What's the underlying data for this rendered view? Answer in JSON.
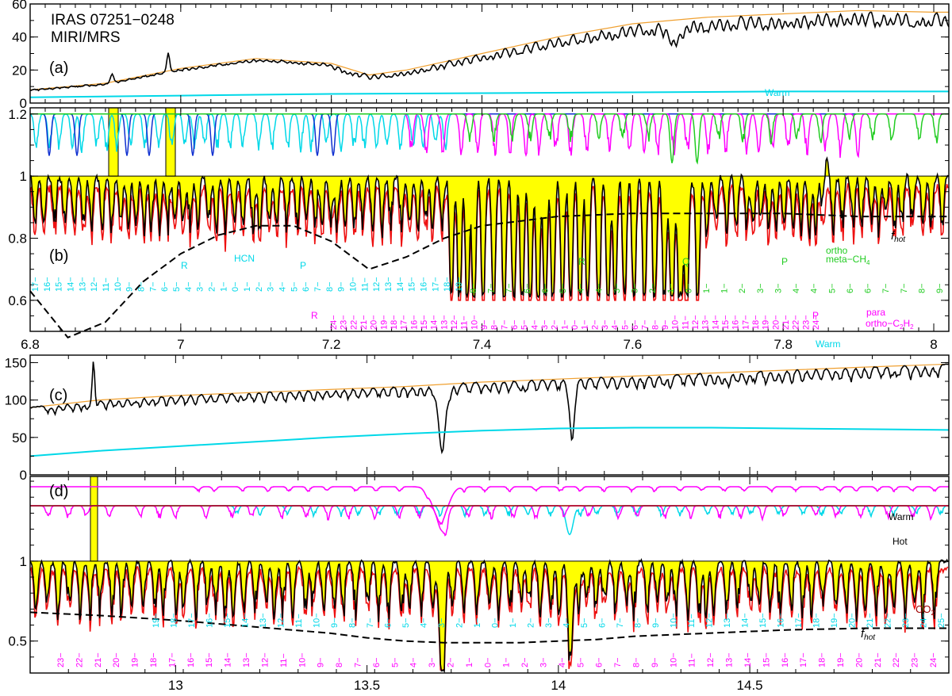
{
  "header": {
    "line1": "IRAS 07251−0248",
    "line2": "MIRI/MRS"
  },
  "colors": {
    "observed": "#000000",
    "continuum": "#f0a030",
    "warm": "#00d8e8",
    "model": "#ee1111",
    "fill": "#ffff00",
    "hcn": "#00d8e8",
    "hcn_hot": "#1030d0",
    "c2h2": "#ff00ff",
    "ch4": "#22cc22",
    "co2": "#a00000",
    "fhot": "#000000"
  },
  "chart_data": [
    {
      "panel": "a",
      "type": "line",
      "x_range": [
        6.8,
        8.02
      ],
      "ylim": [
        0,
        60
      ],
      "yticks": [
        0,
        20,
        40,
        60
      ],
      "series": [
        {
          "name": "",
          "role": "observed",
          "x": [
            6.8,
            6.85,
            6.9,
            6.95,
            7.0,
            7.05,
            7.1,
            7.15,
            7.2,
            7.25,
            7.3,
            7.35,
            7.4,
            7.45,
            7.5,
            7.55,
            7.6,
            7.65,
            7.7,
            7.75,
            7.8,
            7.85,
            7.9,
            7.95,
            8.0,
            8.02
          ],
          "y": [
            10,
            8,
            14,
            20,
            22,
            24,
            27,
            26,
            22,
            17,
            18,
            22,
            26,
            30,
            33,
            38,
            42,
            38,
            43,
            48,
            51,
            54,
            55,
            53,
            54,
            54
          ]
        },
        {
          "name": "",
          "role": "continuum",
          "x": [
            6.8,
            6.9,
            7.0,
            7.1,
            7.2,
            7.25,
            7.3,
            7.4,
            7.5,
            7.6,
            7.7,
            7.8,
            7.9,
            8.0,
            8.02
          ],
          "y": [
            8,
            12,
            21,
            27,
            24,
            17,
            20,
            30,
            40,
            48,
            52,
            54,
            56,
            55,
            55
          ]
        },
        {
          "name": "Warm",
          "role": "warm",
          "x": [
            6.8,
            7.0,
            7.2,
            7.4,
            7.6,
            7.8,
            8.02
          ],
          "y": [
            3.5,
            4.5,
            5.5,
            6,
            6.5,
            7,
            7
          ]
        }
      ],
      "annotations": [
        "(a)",
        "Warm"
      ]
    },
    {
      "panel": "b",
      "type": "line",
      "xlim": [
        6.8,
        8.02
      ],
      "ylim": [
        0.5,
        1.22
      ],
      "xticks": [
        6.8,
        7,
        7.2,
        7.4,
        7.6,
        7.8,
        8
      ],
      "yticks": [
        0.6,
        0.8,
        1,
        1.2
      ],
      "series": [
        {
          "name": "f_hot",
          "role": "fhot",
          "x": [
            6.8,
            6.85,
            6.9,
            6.95,
            7.0,
            7.05,
            7.1,
            7.15,
            7.2,
            7.25,
            7.3,
            7.35,
            7.4,
            7.5,
            7.6,
            7.7,
            7.8,
            7.9,
            8.0,
            8.02
          ],
          "y": [
            0.63,
            0.48,
            0.53,
            0.66,
            0.75,
            0.81,
            0.84,
            0.84,
            0.79,
            0.7,
            0.74,
            0.8,
            0.84,
            0.87,
            0.88,
            0.88,
            0.88,
            0.87,
            0.87,
            0.87
          ]
        }
      ],
      "annotations": {
        "panel_label": "(b)",
        "fhot_label": "f",
        "fhot_sub": "hot",
        "hcn_label": "HCN",
        "hcn_R": "R",
        "hcn_P": "P",
        "hcn_labels": [
          "17",
          "16",
          "15",
          "14",
          "13",
          "12",
          "11",
          "10",
          "9",
          "8",
          "7",
          "6",
          "5",
          "4",
          "3",
          "2",
          "1",
          "0",
          "1",
          "2",
          "3",
          "4",
          "5",
          "6",
          "7",
          "8",
          "9",
          "10",
          "11",
          "12",
          "13",
          "14",
          "15",
          "16",
          "17",
          "18",
          "19"
        ],
        "c2h2_R": "R",
        "c2h2_P": "P",
        "c2h2_labels": [
          "24",
          "23",
          "22",
          "21",
          "20",
          "19",
          "18",
          "17",
          "16",
          "15",
          "14",
          "13",
          "12",
          "11",
          "10",
          "9",
          "8",
          "7",
          "6",
          "5",
          "4",
          "3",
          "2",
          "1",
          "0",
          "1",
          "2",
          "3",
          "4",
          "5",
          "6",
          "7",
          "8",
          "9",
          "10",
          "11",
          "12",
          "13",
          "14",
          "15",
          "16",
          "17",
          "18",
          "19",
          "20",
          "21",
          "22",
          "23",
          "24"
        ],
        "c2h2_para": "para",
        "c2h2_ortho": "ortho−C",
        "c2h2_h": "H",
        "c2h2_sub": "2",
        "ch4_labels": [
          "8",
          "7",
          "7",
          "6",
          "6",
          "5",
          "4",
          "4",
          "3",
          "3",
          "2",
          "1",
          "0",
          "1",
          "1",
          "2",
          "3",
          "3",
          "4",
          "4",
          "5",
          "6",
          "6",
          "7",
          "7",
          "8",
          "9"
        ],
        "ch4_R": "R",
        "ch4_Q": "Q",
        "ch4_P": "P",
        "ch4_ortho": "ortho",
        "ch4_meta": "meta−CH",
        "ch4_sub": "4"
      }
    },
    {
      "panel": "c",
      "type": "line",
      "x_range": [
        12.62,
        15.02
      ],
      "ylim": [
        0,
        160
      ],
      "yticks": [
        0,
        50,
        100,
        150
      ],
      "series": [
        {
          "name": "",
          "role": "observed",
          "x": [
            12.62,
            12.7,
            12.8,
            12.9,
            13.0,
            13.1,
            13.2,
            13.3,
            13.4,
            13.5,
            13.6,
            13.65,
            13.7,
            13.75,
            13.8,
            13.9,
            14.0,
            14.03,
            14.1,
            14.2,
            14.3,
            14.4,
            14.5,
            14.6,
            14.7,
            14.8,
            14.9,
            15.0,
            15.02
          ],
          "y": [
            88,
            92,
            98,
            102,
            104,
            106,
            108,
            112,
            114,
            116,
            112,
            90,
            25,
            105,
            118,
            122,
            126,
            45,
            128,
            132,
            134,
            136,
            138,
            140,
            142,
            144,
            145,
            146,
            146
          ]
        },
        {
          "name": "",
          "role": "continuum",
          "x": [
            12.62,
            12.8,
            13.0,
            13.2,
            13.4,
            13.6,
            13.8,
            14.0,
            14.2,
            14.4,
            14.6,
            14.8,
            15.02
          ],
          "y": [
            90,
            100,
            106,
            110,
            114,
            118,
            124,
            128,
            132,
            136,
            140,
            144,
            148
          ]
        },
        {
          "name": "Warm",
          "role": "warm",
          "x": [
            12.62,
            12.8,
            13.0,
            13.2,
            13.4,
            13.6,
            13.8,
            14.0,
            14.2,
            14.4,
            14.6,
            14.8,
            15.02
          ],
          "y": [
            25,
            32,
            38,
            44,
            50,
            55,
            59,
            62,
            63,
            63,
            62,
            61,
            60
          ]
        }
      ],
      "annotations": [
        "(c)",
        "Warm"
      ]
    },
    {
      "panel": "d",
      "type": "line",
      "xlim": [
        12.62,
        15.02
      ],
      "ylim": [
        0.3,
        1.53
      ],
      "xticks": [
        13,
        13.5,
        14,
        14.5
      ],
      "yticks": [
        0.5,
        1
      ],
      "series": [
        {
          "name": "f_hot",
          "role": "fhot",
          "x": [
            12.62,
            12.8,
            13.0,
            13.2,
            13.4,
            13.5,
            13.6,
            13.7,
            13.8,
            13.9,
            14.0,
            14.1,
            14.2,
            14.4,
            14.6,
            14.8,
            15.0,
            15.02
          ],
          "y": [
            0.68,
            0.66,
            0.63,
            0.59,
            0.55,
            0.52,
            0.5,
            0.49,
            0.49,
            0.49,
            0.5,
            0.51,
            0.53,
            0.55,
            0.57,
            0.58,
            0.58,
            0.58
          ]
        }
      ],
      "annotations": {
        "panel_label": "(d)",
        "warm": "Warm",
        "hot": "Hot",
        "co2": "CO",
        "co2_sub": "2",
        "fhot_label": "f",
        "fhot_sub": "hot",
        "cyan_labels": [
          "19",
          "18",
          "17",
          "16",
          "15",
          "14",
          "13",
          "12",
          "11",
          "10",
          "9",
          "8",
          "7",
          "6",
          "5",
          "4",
          "3",
          "2",
          "1",
          "0",
          "1",
          "2",
          "3",
          "4",
          "5",
          "6",
          "7",
          "8",
          "9",
          "10",
          "11",
          "12",
          "13",
          "14",
          "15",
          "16",
          "17",
          "18",
          "19",
          "20",
          "21",
          "22",
          "23",
          "24",
          "25"
        ],
        "magenta_labels": [
          "23",
          "22",
          "21",
          "20",
          "19",
          "18",
          "17",
          "16",
          "15",
          "14",
          "13",
          "12",
          "11",
          "10",
          "9",
          "8",
          "7",
          "6",
          "5",
          "4",
          "3",
          "2",
          "1",
          "0",
          "1",
          "2",
          "3",
          "4",
          "5",
          "6",
          "7",
          "8",
          "9",
          "10",
          "11",
          "12",
          "13",
          "14",
          "15",
          "16",
          "17",
          "18",
          "19",
          "20",
          "21",
          "22",
          "23",
          "24"
        ]
      }
    }
  ]
}
